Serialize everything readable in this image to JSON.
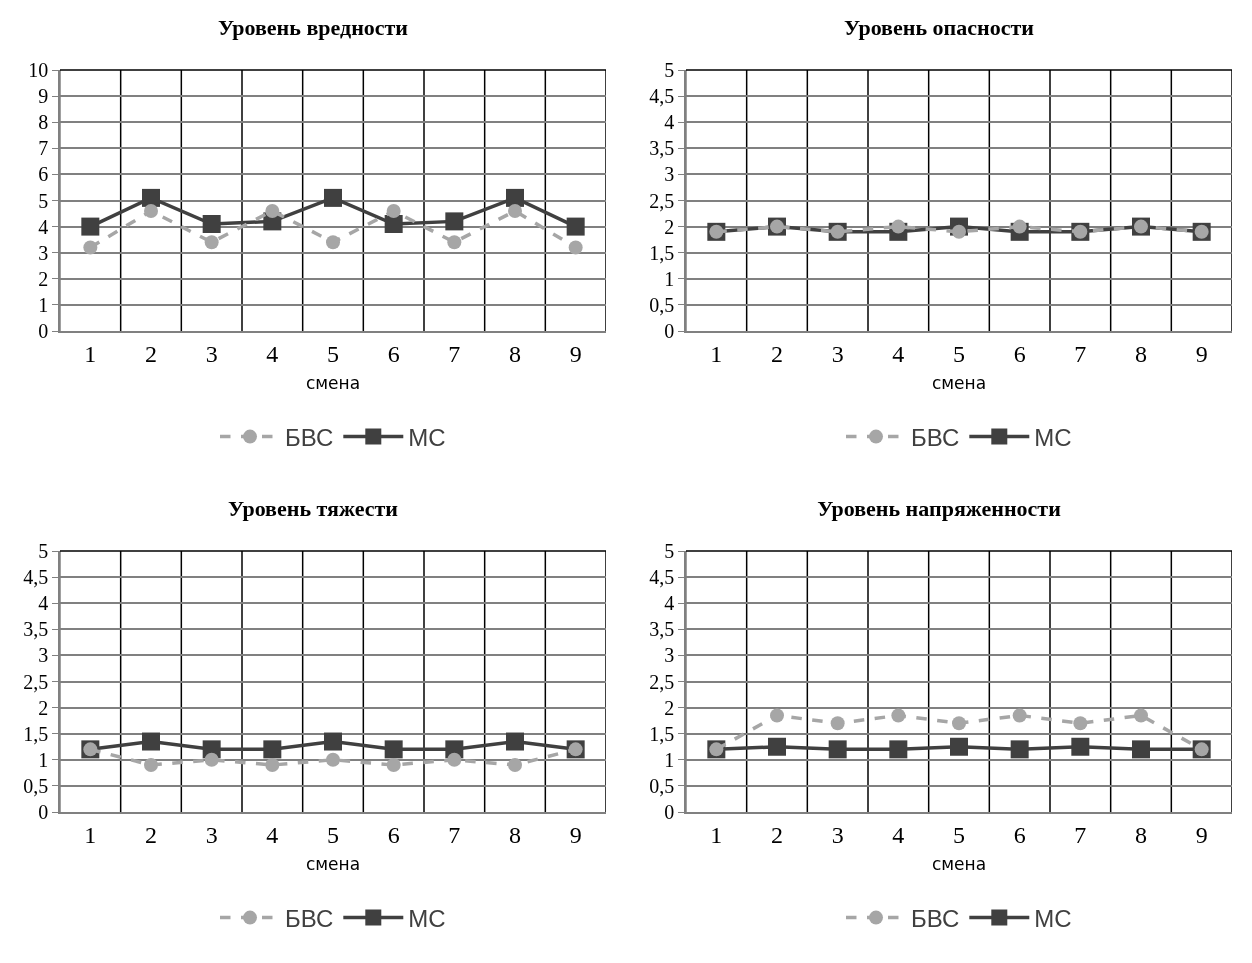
{
  "chart_data": [
    {
      "type": "line",
      "title": "Уровень вредности",
      "xlabel": "смена",
      "categories": [
        "1",
        "2",
        "3",
        "4",
        "5",
        "6",
        "7",
        "8",
        "9"
      ],
      "ylim": [
        0,
        10
      ],
      "yticks": [
        0,
        1,
        2,
        3,
        4,
        5,
        6,
        7,
        8,
        9,
        10
      ],
      "grid": true,
      "legend": "bottom",
      "series": [
        {
          "name": "БВС",
          "color": "#a6a6a6",
          "marker": "circle",
          "line_style": "dashed",
          "values": [
            3.2,
            4.6,
            3.4,
            4.6,
            3.4,
            4.6,
            3.4,
            4.6,
            3.2
          ]
        },
        {
          "name": "МС",
          "color": "#404040",
          "marker": "square",
          "line_style": "solid",
          "values": [
            4.0,
            5.1,
            4.1,
            4.2,
            5.1,
            4.1,
            4.2,
            5.1,
            4.0
          ]
        }
      ]
    },
    {
      "type": "line",
      "title": "Уровень опасности",
      "xlabel": "смена",
      "categories": [
        "1",
        "2",
        "3",
        "4",
        "5",
        "6",
        "7",
        "8",
        "9"
      ],
      "ylim": [
        0,
        5
      ],
      "yticks": [
        0,
        {
          "value": 0.5,
          "label": "0,5"
        },
        1,
        {
          "value": 1.5,
          "label": "1,5"
        },
        2,
        {
          "value": 2.5,
          "label": "2,5"
        },
        3,
        {
          "value": 3.5,
          "label": "3,5"
        },
        4,
        {
          "value": 4.5,
          "label": "4,5"
        },
        5
      ],
      "grid": true,
      "legend": "bottom",
      "series": [
        {
          "name": "БВС",
          "color": "#a6a6a6",
          "marker": "circle",
          "line_style": "dashed",
          "values": [
            1.9,
            2.0,
            1.9,
            2.0,
            1.9,
            2.0,
            1.9,
            2.0,
            1.9
          ]
        },
        {
          "name": "МС",
          "color": "#404040",
          "marker": "square",
          "line_style": "solid",
          "values": [
            1.9,
            2.0,
            1.9,
            1.9,
            2.0,
            1.9,
            1.9,
            2.0,
            1.9
          ]
        }
      ]
    },
    {
      "type": "line",
      "title": "Уровень тяжести",
      "xlabel": "смена",
      "categories": [
        "1",
        "2",
        "3",
        "4",
        "5",
        "6",
        "7",
        "8",
        "9"
      ],
      "ylim": [
        0,
        5
      ],
      "yticks": [
        0,
        {
          "value": 0.5,
          "label": "0,5"
        },
        1,
        {
          "value": 1.5,
          "label": "1,5"
        },
        2,
        {
          "value": 2.5,
          "label": "2,5"
        },
        3,
        {
          "value": 3.5,
          "label": "3,5"
        },
        4,
        {
          "value": 4.5,
          "label": "4,5"
        },
        5
      ],
      "grid": true,
      "legend": "bottom",
      "series": [
        {
          "name": "БВС",
          "color": "#a6a6a6",
          "marker": "circle",
          "line_style": "dashed",
          "values": [
            1.2,
            0.9,
            1.0,
            0.9,
            1.0,
            0.9,
            1.0,
            0.9,
            1.2
          ]
        },
        {
          "name": "МС",
          "color": "#404040",
          "marker": "square",
          "line_style": "solid",
          "values": [
            1.2,
            1.35,
            1.2,
            1.2,
            1.35,
            1.2,
            1.2,
            1.35,
            1.2
          ]
        }
      ]
    },
    {
      "type": "line",
      "title": "Уровень напряженности",
      "xlabel": "смена",
      "categories": [
        "1",
        "2",
        "3",
        "4",
        "5",
        "6",
        "7",
        "8",
        "9"
      ],
      "ylim": [
        0,
        5
      ],
      "yticks": [
        0,
        {
          "value": 0.5,
          "label": "0,5"
        },
        1,
        {
          "value": 1.5,
          "label": "1,5"
        },
        2,
        {
          "value": 2.5,
          "label": "2,5"
        },
        3,
        {
          "value": 3.5,
          "label": "3,5"
        },
        4,
        {
          "value": 4.5,
          "label": "4,5"
        },
        5
      ],
      "grid": true,
      "legend": "bottom",
      "series": [
        {
          "name": "БВС",
          "color": "#a6a6a6",
          "marker": "circle",
          "line_style": "dashed",
          "values": [
            1.2,
            1.85,
            1.7,
            1.85,
            1.7,
            1.85,
            1.7,
            1.85,
            1.2
          ]
        },
        {
          "name": "МС",
          "color": "#404040",
          "marker": "square",
          "line_style": "solid",
          "values": [
            1.2,
            1.25,
            1.2,
            1.2,
            1.25,
            1.2,
            1.25,
            1.2,
            1.2
          ]
        }
      ]
    }
  ]
}
